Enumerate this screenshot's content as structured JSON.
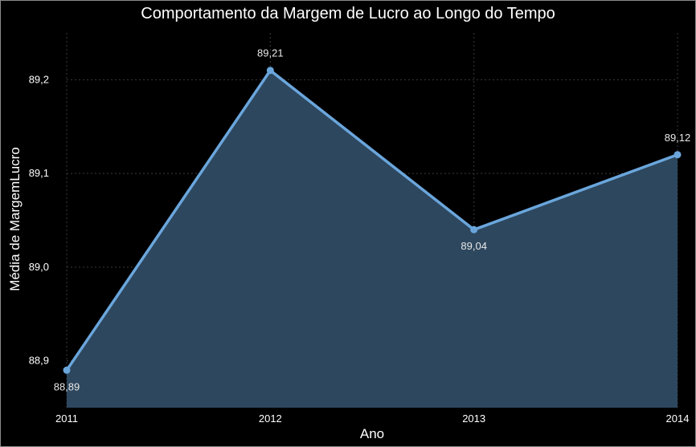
{
  "chart_data": {
    "type": "area",
    "title": "Comportamento da Margem de Lucro ao Longo do Tempo",
    "xlabel": "Ano",
    "ylabel": "Média de MargemLucro",
    "x": [
      "2011",
      "2012",
      "2013",
      "2014"
    ],
    "series": [
      {
        "values": [
          88.89,
          89.21,
          89.04,
          89.12
        ],
        "data_labels": [
          "88,89",
          "89,21",
          "89,04",
          "89,12"
        ]
      }
    ],
    "y_ticks": [
      88.9,
      89.0,
      89.1,
      89.2
    ],
    "y_tick_labels": [
      "88,9",
      "89,0",
      "89,1",
      "89,2"
    ],
    "ylim": [
      88.85,
      89.25
    ],
    "grid": true,
    "colors": {
      "background": "#000000",
      "line": "#6aa6dc",
      "area": "#2d475e",
      "text": "#ffffff",
      "grid": "#3a3a3a"
    }
  }
}
